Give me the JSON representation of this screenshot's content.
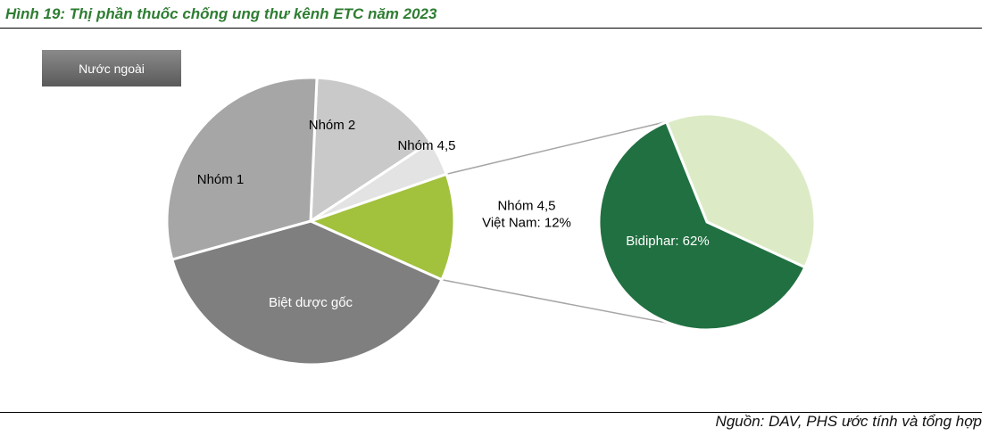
{
  "figure": {
    "title": "Hình 19: Thị phần thuốc chống ung thư kênh ETC năm 2023",
    "source": "Nguồn: DAV, PHS ước tính và tổng hợp",
    "legend_label": "Nước ngoài"
  },
  "chart_data": [
    {
      "type": "pie",
      "title": "",
      "slices": [
        {
          "name": "Nhóm 2",
          "value": 15,
          "color": "#c9c9c9",
          "label_lines": [
            "Nhóm 2"
          ],
          "label_color": "#000000"
        },
        {
          "name": "Nhóm 4,5",
          "value": 4,
          "color": "#e3e3e3",
          "label_lines": [
            "Nhóm 4,5"
          ],
          "label_color": "#000000"
        },
        {
          "name": "Nhóm 4,5 Việt Nam",
          "value": 12,
          "color": "#a2c13c",
          "label_lines": [
            "Nhóm 4,5",
            "Việt Nam: 12%"
          ],
          "label_color": "#000000"
        },
        {
          "name": "Biệt dược gốc",
          "value": 39,
          "color": "#7f7f7f",
          "label_lines": [
            "Biệt dược gốc"
          ],
          "label_color": "#ffffff"
        },
        {
          "name": "Nhóm 1",
          "value": 30,
          "color": "#a6a6a6",
          "label_lines": [
            "Nhóm 1"
          ],
          "label_color": "#000000"
        }
      ]
    },
    {
      "type": "pie",
      "title": "",
      "slices": [
        {
          "name": "",
          "value": 38,
          "color": "#dcebc6",
          "label_lines": [],
          "label_color": "#000000"
        },
        {
          "name": "Bidiphar",
          "value": 62,
          "color": "#217041",
          "label_lines": [
            "Bidiphar: 62%"
          ],
          "label_color": "#ffffff"
        }
      ]
    }
  ]
}
